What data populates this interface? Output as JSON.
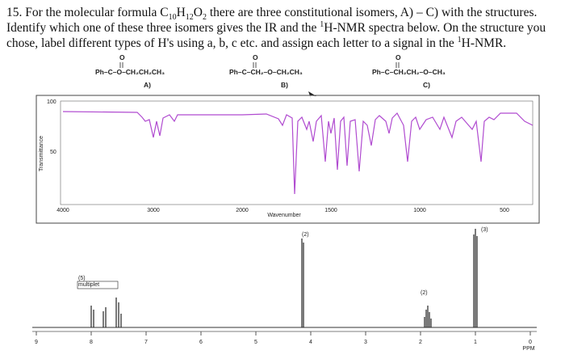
{
  "question": {
    "number": "15.",
    "text_0": "For the molecular formula C",
    "sub_c": "10",
    "text_1": "H",
    "sub_h": "12",
    "text_2": "O",
    "sub_o": "2",
    "text_3": " there are three constitutional isomers, A) – C) with the structures. Identify which one of these three isomers gives the IR and the ",
    "sup_1": "1",
    "text_4": "H-NMR spectra below. On the structure you chose, label different types of H's using a, b, c etc. and assign each letter to a signal in the ",
    "sup_2": "1",
    "text_5": "H-NMR."
  },
  "structures": [
    {
      "carbonyl": "O",
      "formula": "Ph–C–O–CH₂CH₂CH₃",
      "label": "A)"
    },
    {
      "carbonyl": "O",
      "formula": "Ph–C–CH₂–O–CH₂CH₃",
      "label": "B)"
    },
    {
      "carbonyl": "O",
      "formula": "Ph–C–CH₂CH₂–O–CH₃",
      "label": "C)"
    }
  ],
  "ir": {
    "y_labels": [
      "100",
      "50"
    ],
    "y_title": "Transmittance",
    "x_labels": [
      "4000",
      "3000",
      "2000",
      "1500",
      "1000",
      "500"
    ],
    "x_title": "Wavenumber"
  },
  "nmr": {
    "axis_labels": [
      "9",
      "8",
      "7",
      "6",
      "5",
      "4",
      "3",
      "2",
      "1",
      "0"
    ],
    "axis_title": "PPM",
    "peak_labels": [
      {
        "count": "(5)",
        "note": "multiplet"
      },
      {
        "count": "(2)"
      },
      {
        "count": "(2)"
      },
      {
        "count": "(3)"
      }
    ]
  }
}
